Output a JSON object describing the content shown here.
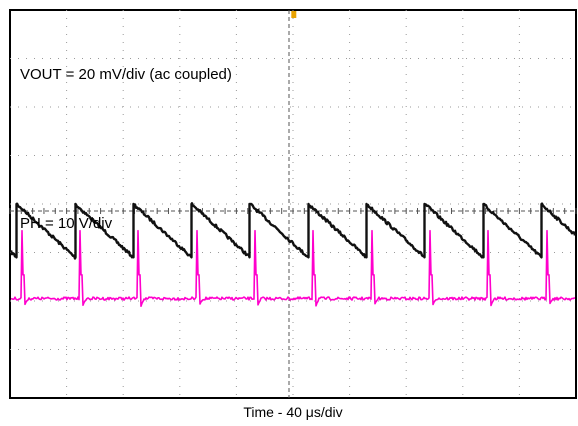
{
  "chart_data": {
    "type": "line",
    "title": "",
    "xlabel": "Time - 40 μs/div",
    "ylabel": "",
    "grid": true,
    "divisions": {
      "x": 10,
      "y": 8
    },
    "trigger_marker_division": 4.9,
    "series": [
      {
        "name": "VOUT",
        "label": "VOUT = 20 mV/div (ac coupled)",
        "color": "#111111",
        "scale": "20 mV/div",
        "coupling": "ac",
        "period_divisions": 1.03,
        "first_reset_division": 0.12,
        "offset_div": 4.55,
        "amplitude_div": 1.1
      },
      {
        "name": "PH",
        "label": "PH = 10 V/div",
        "color": "#ff00cc",
        "scale": "10 V/div",
        "period_divisions": 1.03,
        "first_spike_division": 0.2,
        "baseline_div": 2.05,
        "spike_div": 1.4
      }
    ]
  }
}
